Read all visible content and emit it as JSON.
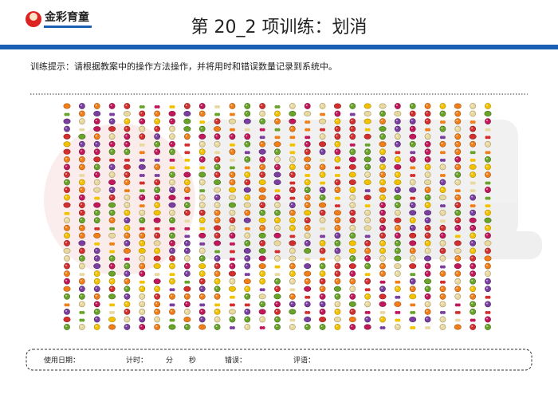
{
  "header": {
    "logo": "金彩育童",
    "title": "第 20_2 项训练：划消"
  },
  "instruction": "训练提示：请根据教案中的操作方法操作，并将用时和错误数量记录到系统中。",
  "footer": {
    "date": "使用日期：",
    "time": "计时：",
    "minutes": "分",
    "seconds": "秒",
    "errors": "错误：",
    "comments": "评语："
  }
}
